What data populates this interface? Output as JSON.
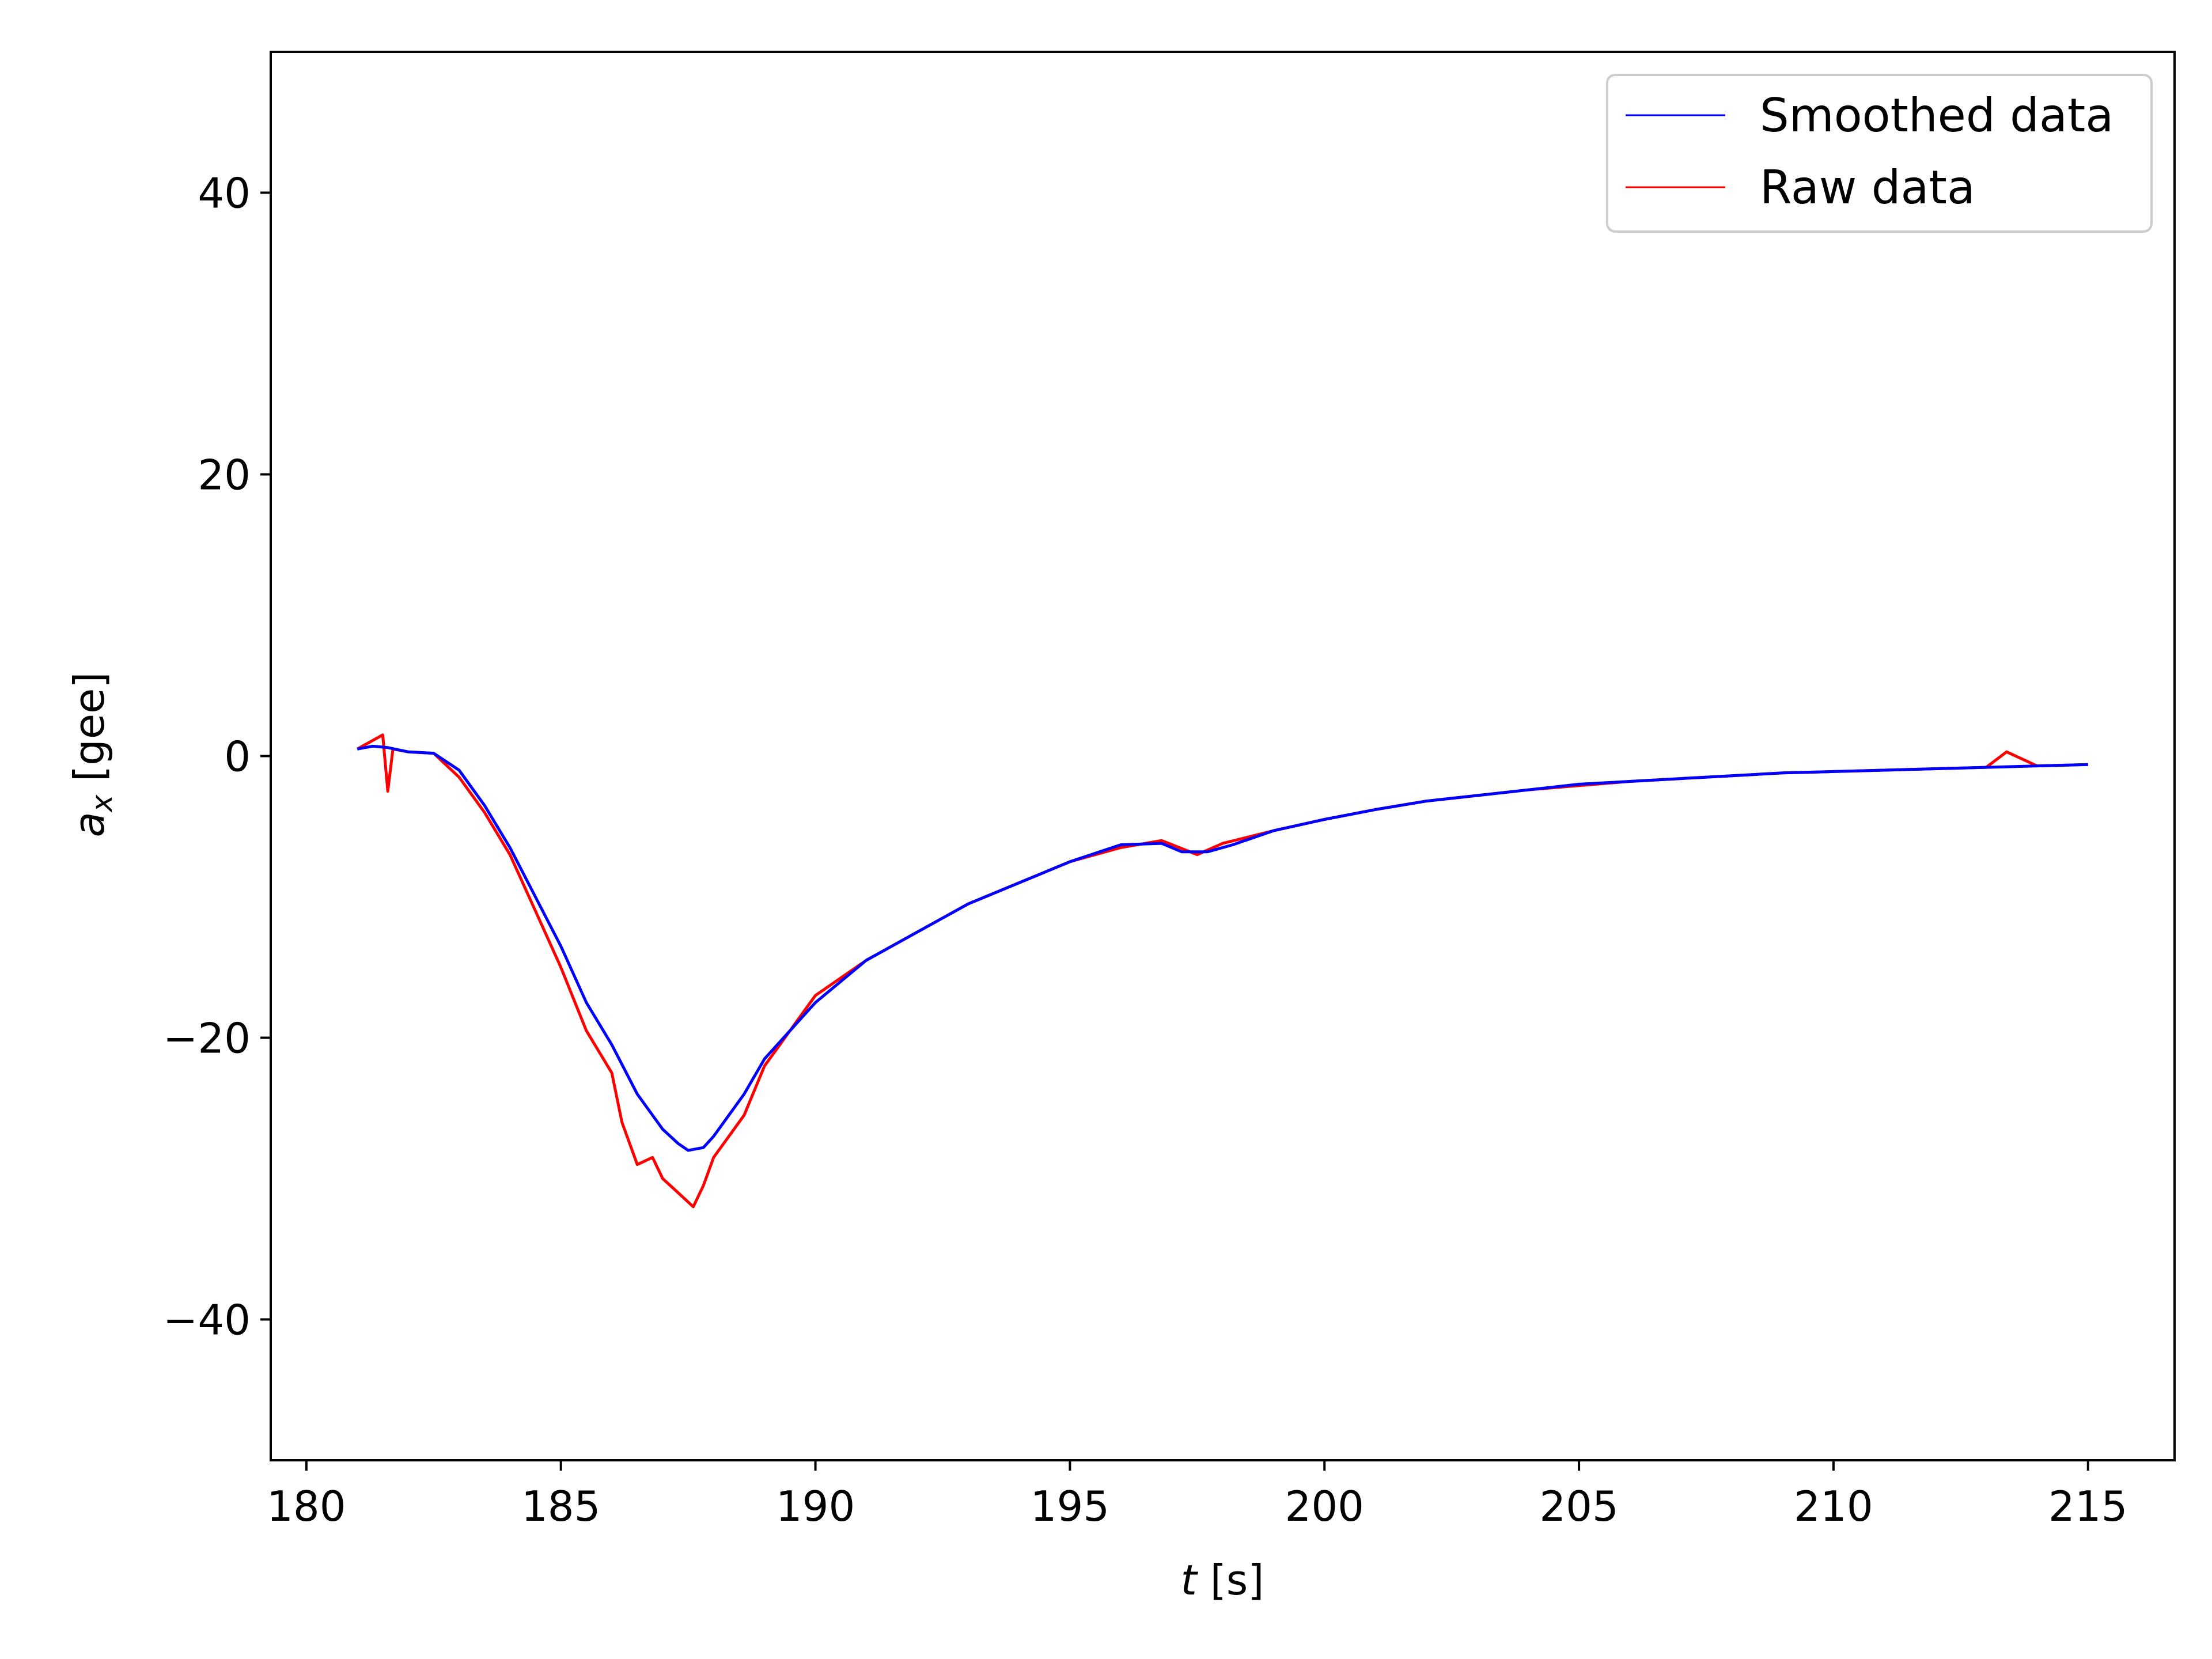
{
  "chart_data": {
    "type": "line",
    "title": "",
    "xlabel": {
      "var": "t",
      "unit": " [s]"
    },
    "ylabel": {
      "var": "a",
      "sub": "x",
      "unit": " [gee]"
    },
    "xlim": [
      179.3,
      216.7
    ],
    "ylim": [
      -50,
      50
    ],
    "xticks": [
      {
        "value": 180,
        "label": "180"
      },
      {
        "value": 185,
        "label": "185"
      },
      {
        "value": 190,
        "label": "190"
      },
      {
        "value": 195,
        "label": "195"
      },
      {
        "value": 200,
        "label": "200"
      },
      {
        "value": 205,
        "label": "205"
      },
      {
        "value": 210,
        "label": "210"
      },
      {
        "value": 215,
        "label": "215"
      }
    ],
    "yticks": [
      {
        "value": -40,
        "label": "−40"
      },
      {
        "value": -20,
        "label": "−20"
      },
      {
        "value": 0,
        "label": "0"
      },
      {
        "value": 20,
        "label": "20"
      },
      {
        "value": 40,
        "label": "40"
      }
    ],
    "grid": false,
    "legend": {
      "position": "top-right"
    },
    "series": [
      {
        "name": "Raw data",
        "color": "#ff0000",
        "x": [
          181.0,
          181.5,
          181.6,
          181.7,
          182.0,
          182.5,
          183.0,
          183.5,
          184.0,
          184.5,
          185.0,
          185.5,
          186.0,
          186.2,
          186.5,
          186.8,
          187.0,
          187.3,
          187.6,
          187.8,
          188.0,
          188.3,
          188.6,
          189.0,
          189.5,
          190.0,
          191.0,
          192.0,
          193.0,
          194.0,
          195.0,
          196.0,
          196.8,
          197.5,
          198.0,
          199.0,
          200.0,
          201.0,
          202.0,
          203.0,
          204.0,
          205.0,
          206.0,
          207.0,
          208.0,
          209.0,
          210.0,
          211.0,
          212.0,
          213.0,
          213.4,
          214.0,
          215.0
        ],
        "y": [
          0.5,
          1.5,
          -2.5,
          0.5,
          0.3,
          0.2,
          -1.5,
          -4.0,
          -7.0,
          -11.0,
          -15.0,
          -19.5,
          -22.5,
          -26.0,
          -29.0,
          -28.5,
          -30.0,
          -31.0,
          -32.0,
          -30.5,
          -28.5,
          -27.0,
          -25.5,
          -22.0,
          -19.5,
          -17.0,
          -14.5,
          -12.5,
          -10.5,
          -9.0,
          -7.5,
          -6.5,
          -6.0,
          -7.0,
          -6.2,
          -5.3,
          -4.5,
          -3.8,
          -3.2,
          -2.8,
          -2.4,
          -2.1,
          -1.8,
          -1.6,
          -1.4,
          -1.2,
          -1.1,
          -1.0,
          -0.9,
          -0.8,
          0.3,
          -0.7,
          -0.6
        ]
      },
      {
        "name": "Smoothed data",
        "color": "#0000ff",
        "x": [
          181.0,
          181.3,
          181.6,
          182.0,
          182.5,
          183.0,
          183.5,
          184.0,
          184.5,
          185.0,
          185.5,
          186.0,
          186.5,
          187.0,
          187.3,
          187.5,
          187.8,
          188.0,
          188.3,
          188.6,
          189.0,
          189.5,
          190.0,
          190.5,
          191.0,
          191.5,
          192.0,
          193.0,
          194.0,
          195.0,
          196.0,
          196.8,
          197.2,
          197.7,
          198.2,
          199.0,
          200.0,
          201.0,
          202.0,
          203.0,
          204.0,
          205.0,
          206.0,
          207.0,
          208.0,
          209.0,
          210.0,
          211.0,
          212.0,
          213.0,
          214.0,
          215.0
        ],
        "y": [
          0.5,
          0.7,
          0.6,
          0.3,
          0.2,
          -1.0,
          -3.5,
          -6.5,
          -10.0,
          -13.5,
          -17.5,
          -20.5,
          -24.0,
          -26.5,
          -27.5,
          -28.0,
          -27.8,
          -27.0,
          -25.5,
          -24.0,
          -21.5,
          -19.5,
          -17.5,
          -16.0,
          -14.5,
          -13.5,
          -12.5,
          -10.5,
          -9.0,
          -7.5,
          -6.3,
          -6.2,
          -6.8,
          -6.8,
          -6.3,
          -5.3,
          -4.5,
          -3.8,
          -3.2,
          -2.8,
          -2.4,
          -2.0,
          -1.8,
          -1.6,
          -1.4,
          -1.2,
          -1.1,
          -1.0,
          -0.9,
          -0.8,
          -0.7,
          -0.6
        ]
      }
    ],
    "legend_order": [
      "Smoothed data",
      "Raw data"
    ]
  }
}
